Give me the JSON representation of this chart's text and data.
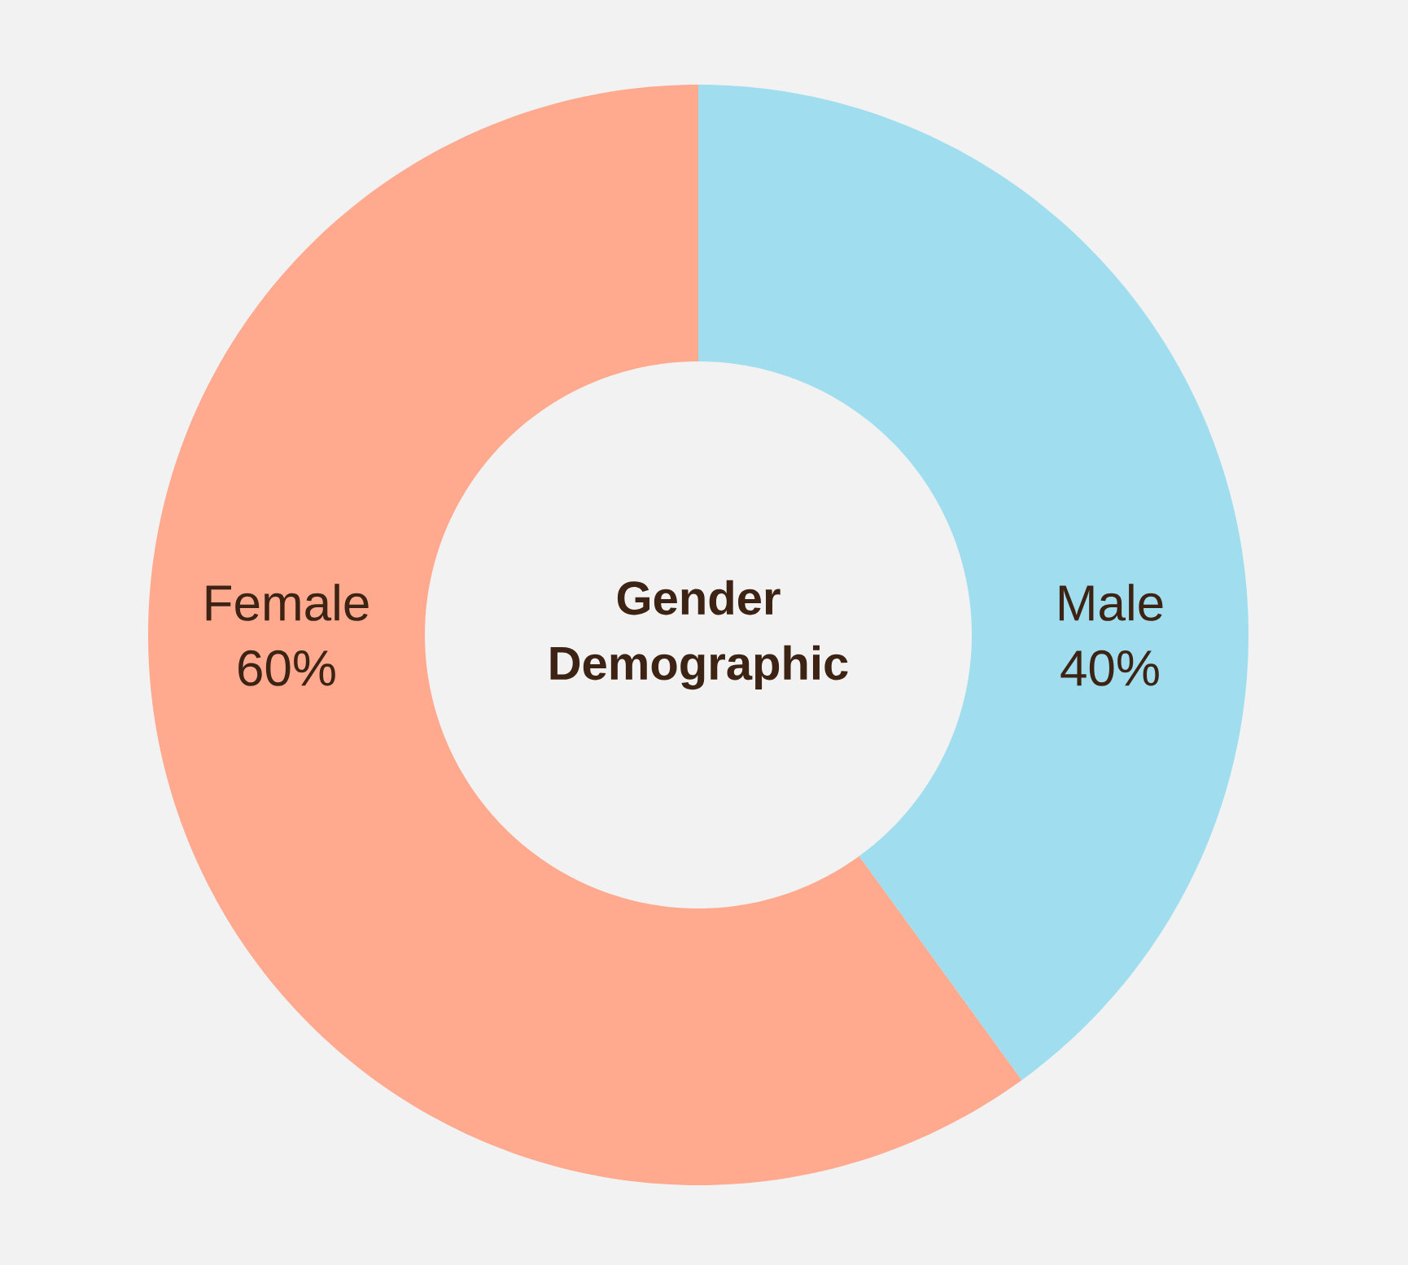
{
  "chart_data": {
    "type": "donut",
    "title": "Gender Demographic",
    "categories": [
      "Male",
      "Female"
    ],
    "values": [
      40,
      60
    ],
    "value_labels": [
      "40%",
      "60%"
    ],
    "colors": [
      "#a0deef",
      "#ffa98f"
    ]
  }
}
